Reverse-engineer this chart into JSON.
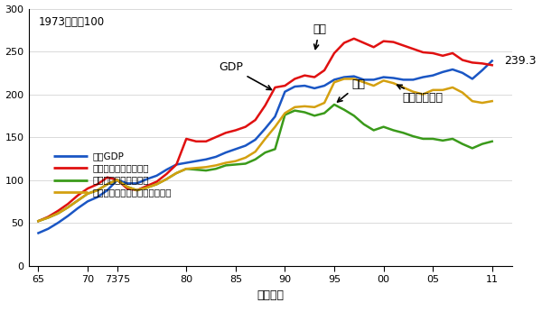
{
  "x": [
    65,
    66,
    67,
    68,
    69,
    70,
    71,
    72,
    73,
    74,
    75,
    76,
    77,
    78,
    79,
    80,
    81,
    82,
    83,
    84,
    85,
    86,
    87,
    88,
    89,
    90,
    91,
    92,
    93,
    94,
    95,
    96,
    97,
    98,
    99,
    100,
    101,
    102,
    103,
    104,
    105,
    106,
    107,
    108,
    109,
    110,
    111
  ],
  "gdp": [
    38,
    43,
    50,
    58,
    67,
    75,
    80,
    88,
    100,
    96,
    96,
    101,
    105,
    112,
    118,
    120,
    122,
    124,
    127,
    132,
    136,
    140,
    147,
    160,
    174,
    203,
    209,
    210,
    207,
    210,
    217,
    220,
    221,
    217,
    217,
    220,
    219,
    217,
    217,
    220,
    222,
    226,
    229,
    225,
    218,
    228,
    239
  ],
  "passenger": [
    52,
    57,
    64,
    72,
    82,
    90,
    95,
    103,
    100,
    90,
    88,
    93,
    98,
    107,
    118,
    148,
    145,
    145,
    150,
    155,
    158,
    162,
    170,
    187,
    208,
    210,
    218,
    222,
    220,
    228,
    248,
    260,
    265,
    260,
    255,
    262,
    261,
    257,
    253,
    249,
    248,
    245,
    248,
    240,
    237,
    236,
    234
  ],
  "freight": [
    52,
    56,
    61,
    68,
    76,
    84,
    88,
    95,
    100,
    92,
    88,
    91,
    95,
    101,
    108,
    113,
    112,
    111,
    113,
    117,
    118,
    119,
    124,
    132,
    136,
    176,
    181,
    179,
    175,
    178,
    188,
    182,
    175,
    165,
    158,
    162,
    158,
    155,
    151,
    148,
    148,
    146,
    148,
    142,
    137,
    142,
    145
  ],
  "transport_total": [
    52,
    56,
    61,
    68,
    76,
    84,
    88,
    95,
    100,
    92,
    88,
    91,
    95,
    101,
    108,
    113,
    114,
    115,
    117,
    120,
    122,
    126,
    133,
    148,
    162,
    178,
    185,
    186,
    185,
    190,
    214,
    218,
    218,
    214,
    210,
    216,
    213,
    208,
    203,
    200,
    205,
    205,
    208,
    202,
    192,
    190,
    192
  ],
  "gdp_color": "#1a56c4",
  "passenger_color": "#e01010",
  "freight_color": "#3a9a1a",
  "transport_color": "#d4a010",
  "background_color": "#ffffff",
  "end_label": "239.3",
  "note": "1973年度＝100",
  "legend_gdp": "実質GDP",
  "legend_passenger": "旅客のエネルギー消費",
  "legend_freight": "貨物のエネルギー消費",
  "legend_transport": "運輸部門全体のエネルギー消費",
  "ann_gdp_text": "GDP",
  "ann_passenger_text": "旅客",
  "ann_freight_text": "貨物",
  "ann_transport_text": "運輸部門全体",
  "xlabel": "（年度）",
  "yticks": [
    0,
    50,
    100,
    150,
    200,
    250,
    300
  ],
  "xtick_labels": [
    "65",
    "70",
    "7375",
    "80",
    "85",
    "90",
    "95",
    "00",
    "05",
    "11"
  ],
  "xtick_positions": [
    65,
    70,
    73,
    80,
    85,
    90,
    95,
    100,
    105,
    111
  ]
}
